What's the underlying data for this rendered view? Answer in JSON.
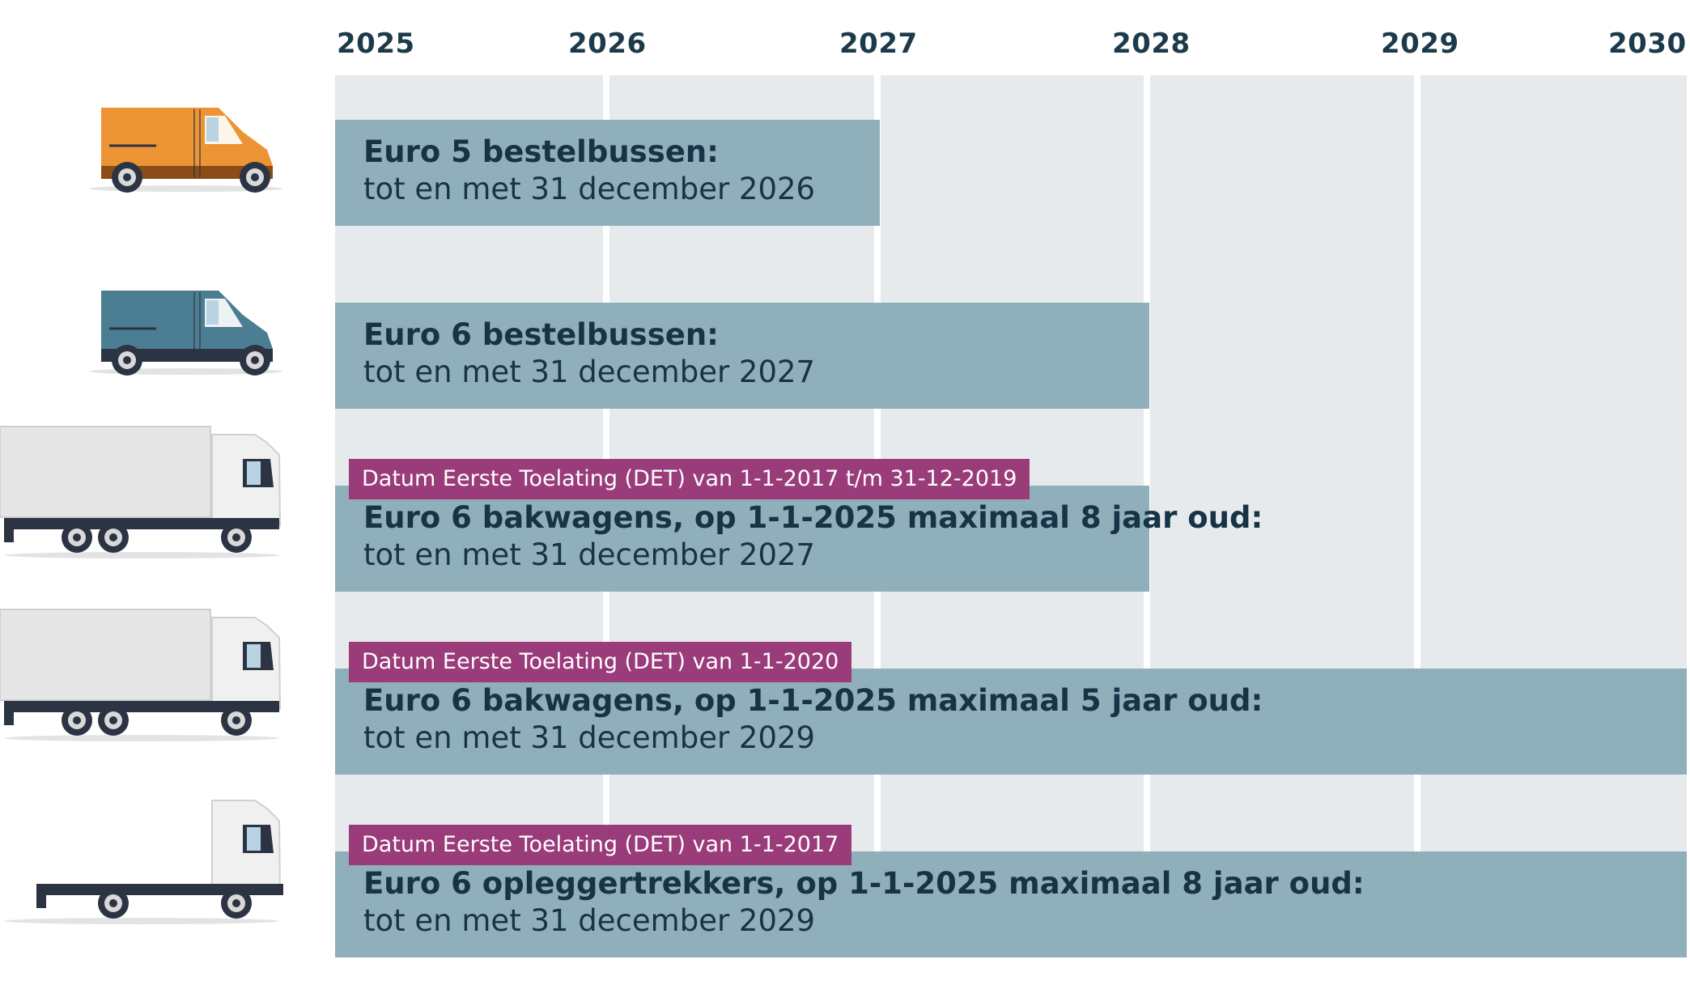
{
  "chart_data": {
    "type": "gantt",
    "years": [
      "2025",
      "2026",
      "2027",
      "2028",
      "2029",
      "2030"
    ],
    "rows": [
      {
        "vehicle": "orange-van-icon",
        "title": "Euro 5 bestelbussen:",
        "subtitle": "tot en met 31 december 2026",
        "start": 2025,
        "end": 2027,
        "det": ""
      },
      {
        "vehicle": "blue-van-icon",
        "title": "Euro 6 bestelbussen:",
        "subtitle": "tot en met 31 december 2027",
        "start": 2025,
        "end": 2028,
        "det": ""
      },
      {
        "vehicle": "box-truck-icon",
        "title": "Euro 6 bakwagens, op 1-1-2025 maximaal 8 jaar oud:",
        "subtitle": "tot en met 31 december 2027",
        "start": 2025,
        "end": 2028,
        "det": "Datum Eerste Toelating (DET) van 1-1-2017 t/m 31-12-2019"
      },
      {
        "vehicle": "box-truck-icon",
        "title": "Euro 6 bakwagens, op 1-1-2025 maximaal 5 jaar oud:",
        "subtitle": "tot en met 31 december 2029",
        "start": 2025,
        "end": 2030,
        "det": "Datum Eerste Toelating (DET) van 1-1-2020"
      },
      {
        "vehicle": "tractor-unit-icon",
        "title": "Euro 6 opleggertrekkers, op 1-1-2025 maximaal 8 jaar oud:",
        "subtitle": "tot en met 31 december 2029",
        "start": 2025,
        "end": 2030,
        "det": "Datum Eerste Toelating (DET) van 1-1-2017"
      }
    ]
  },
  "colors": {
    "plot_background": "#e7eaed",
    "bar": "#8fafbb",
    "bar_text": "#173446",
    "det_label": "#9a3c7a",
    "orange_van": "#ec9433",
    "blue_van": "#4b7d93",
    "truck_body": "#e6e6e6",
    "chassis": "#2c3444"
  }
}
